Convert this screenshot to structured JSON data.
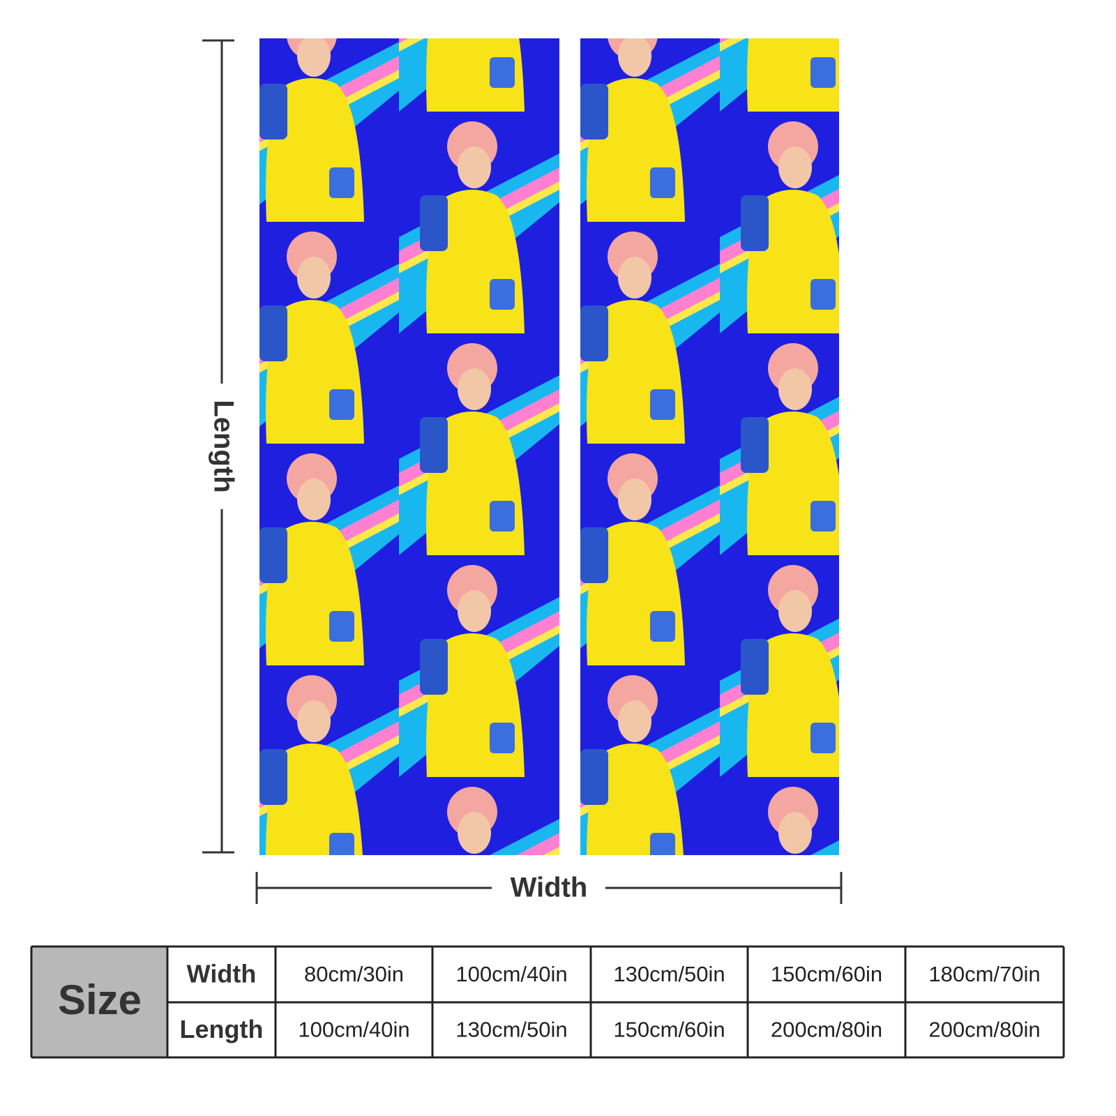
{
  "dimensions": {
    "length_label": "Length",
    "width_label": "Width"
  },
  "table": {
    "corner": "Size",
    "rows": [
      [
        "Width",
        "80cm/30in",
        "100cm/40in",
        "130cm/50in",
        "150cm/60in",
        "180cm/70in"
      ],
      [
        "Length",
        "100cm/40in",
        "130cm/50in",
        "150cm/60in",
        "200cm/80in",
        "200cm/80in"
      ]
    ]
  }
}
